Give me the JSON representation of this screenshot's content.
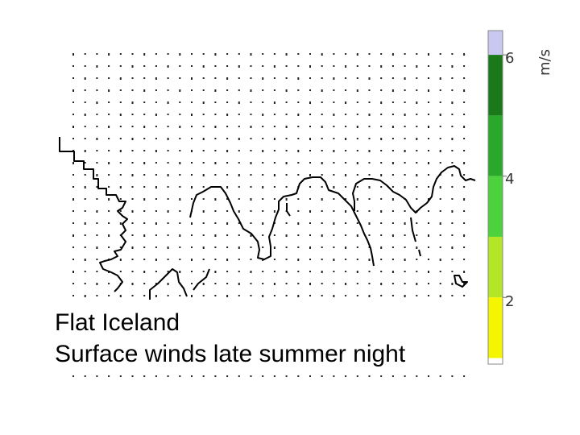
{
  "caption": {
    "line1": "Flat Iceland",
    "line2": "Surface winds late summer night"
  },
  "legend": {
    "unit": "m/s",
    "ticks": [
      {
        "label": "6",
        "value": 6
      },
      {
        "label": "4",
        "value": 4
      },
      {
        "label": "2",
        "value": 2
      }
    ],
    "bands": [
      {
        "from": 6.0,
        "to": 6.4,
        "color": "#c8c8f0"
      },
      {
        "from": 5.0,
        "to": 6.0,
        "color": "#1a7a1a"
      },
      {
        "from": 4.0,
        "to": 5.0,
        "color": "#2aa82a"
      },
      {
        "from": 3.0,
        "to": 4.0,
        "color": "#4cd23c"
      },
      {
        "from": 2.0,
        "to": 3.0,
        "color": "#b4e628"
      },
      {
        "from": 1.0,
        "to": 2.0,
        "color": "#f5f500"
      }
    ]
  },
  "map": {
    "coastline_color": "#000000",
    "vector_color": "#222222"
  }
}
